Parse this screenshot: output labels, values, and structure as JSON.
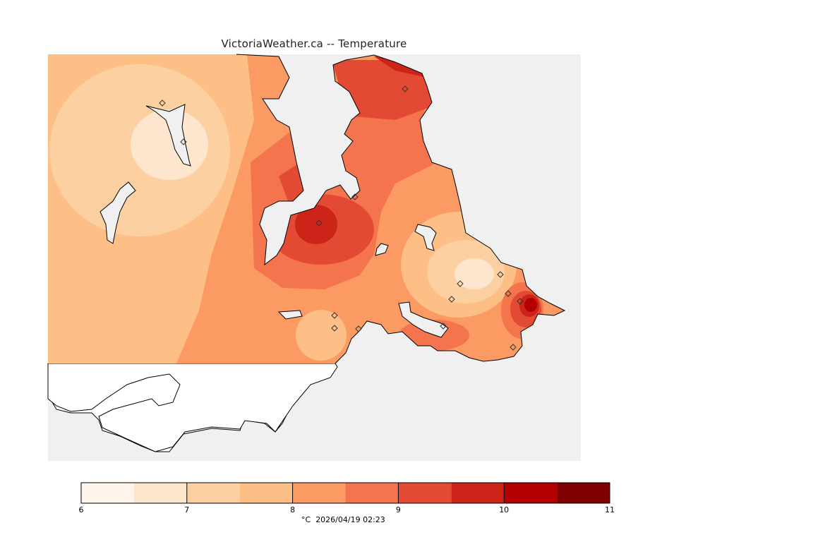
{
  "title": "VictoriaWeather.ca -- Temperature",
  "colors": {
    "land_masked": "#ffffff",
    "water": "#f0f0f0",
    "coast": "#000000"
  },
  "colorbar": {
    "levels": [
      6,
      6.5,
      7,
      7.5,
      8,
      8.5,
      9,
      9.5,
      10,
      10.5,
      11
    ],
    "colors": [
      "#fff5eb",
      "#fee6ce",
      "#fdd0a2",
      "#fdbf86",
      "#fb9a62",
      "#f4754d",
      "#e34a33",
      "#cc2418",
      "#b30000",
      "#7f0000"
    ],
    "tick_labels": [
      "6",
      "7",
      "8",
      "9",
      "10",
      "11"
    ]
  },
  "footer": {
    "unit": "°C",
    "timestamp": "2026/04/19 02:23"
  }
}
